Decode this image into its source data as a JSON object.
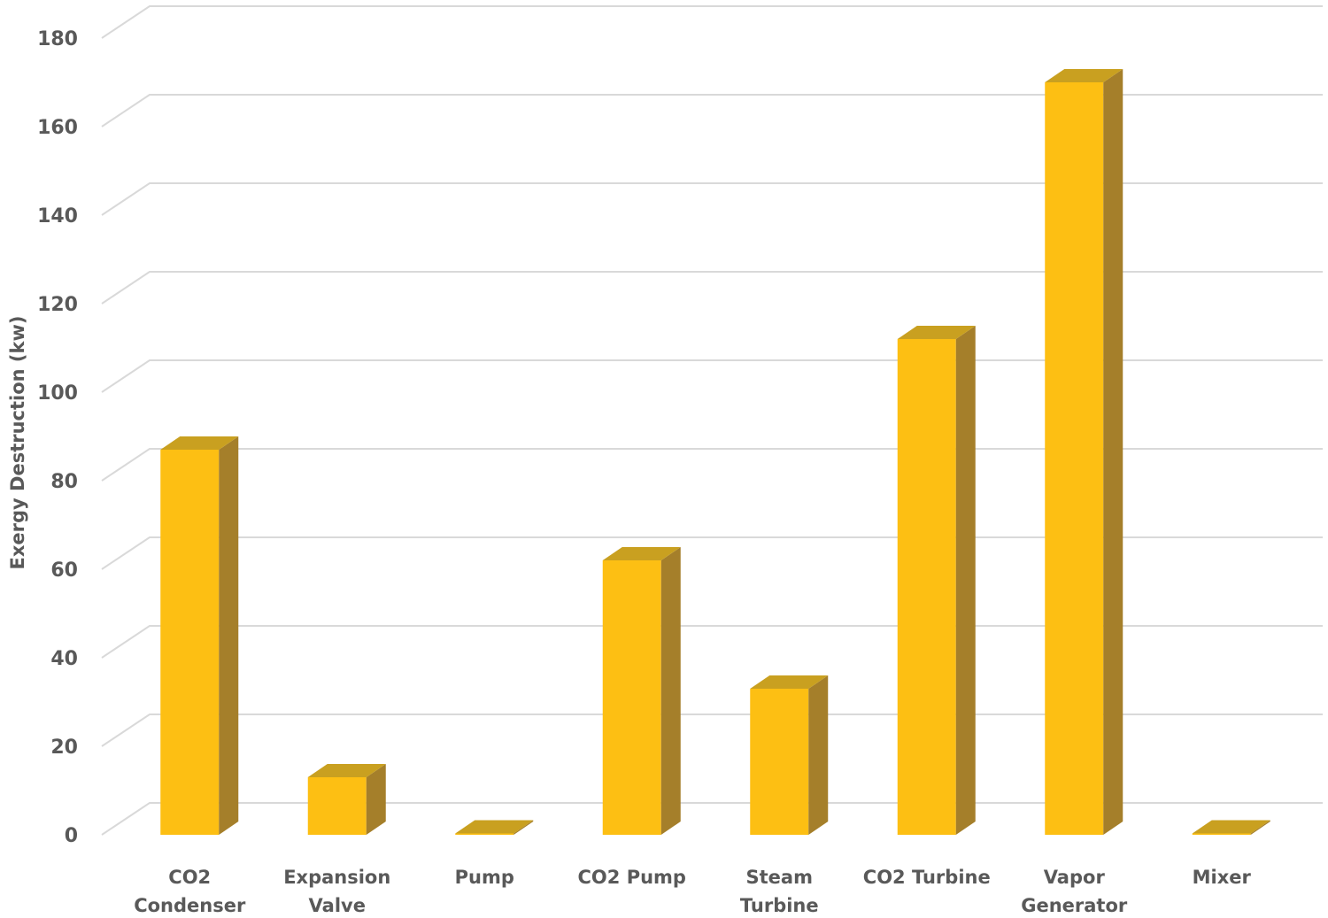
{
  "chart_data": {
    "type": "bar",
    "style": "3d-column",
    "title": "",
    "xlabel": "",
    "ylabel": "Exergy Destruction (kw)",
    "ylim": [
      0,
      180
    ],
    "yticks": [
      0,
      20,
      40,
      60,
      80,
      100,
      120,
      140,
      160,
      180
    ],
    "grid": true,
    "legend": "none",
    "categories": [
      [
        "CO2",
        "Condenser"
      ],
      [
        "Expansion",
        "Valve"
      ],
      [
        "Pump"
      ],
      [
        "CO2 Pump"
      ],
      [
        "Steam",
        "Turbine"
      ],
      [
        "CO2 Turbine"
      ],
      [
        "Vapor",
        "Generator"
      ],
      [
        "Mixer"
      ]
    ],
    "values": [
      87,
      13,
      0.3,
      62,
      33,
      112,
      170,
      0.3
    ],
    "colors": {
      "front": "#FDBF13",
      "side": "#A57F2A",
      "top": "#C9A020"
    }
  }
}
